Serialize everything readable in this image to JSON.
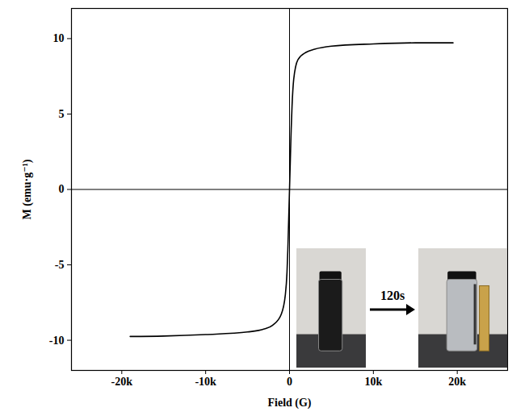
{
  "chart_data": {
    "type": "line",
    "x_label": "Field (G)",
    "y_label": "M (emu·g⁻¹)",
    "x": [
      -19000,
      -15000,
      -10000,
      -5000,
      -3000,
      -2000,
      -1000,
      -500,
      -300,
      -200,
      -100,
      0,
      100,
      200,
      300,
      500,
      1000,
      2000,
      3000,
      5000,
      10000,
      15000,
      19500
    ],
    "series": [
      {
        "name": "M",
        "color": "#000000",
        "values": [
          -9.75,
          -9.72,
          -9.62,
          -9.45,
          -9.25,
          -9.0,
          -8.3,
          -7.0,
          -5.5,
          -4.0,
          -2.0,
          0,
          2.0,
          4.0,
          5.5,
          7.3,
          8.6,
          9.1,
          9.3,
          9.5,
          9.65,
          9.72,
          9.72
        ]
      }
    ],
    "xlim": [
      -26000,
      26000
    ],
    "ylim": [
      -12,
      12
    ],
    "xticks": [
      {
        "value": -20000,
        "label": "-20k"
      },
      {
        "value": -10000,
        "label": "-10k"
      },
      0,
      {
        "value": 10000,
        "label": "10k"
      },
      {
        "value": 20000,
        "label": "20k"
      }
    ],
    "yticks": [
      -10,
      -5,
      0,
      5,
      10
    ],
    "grid": false,
    "annotations": [
      {
        "text": "120s"
      }
    ]
  }
}
